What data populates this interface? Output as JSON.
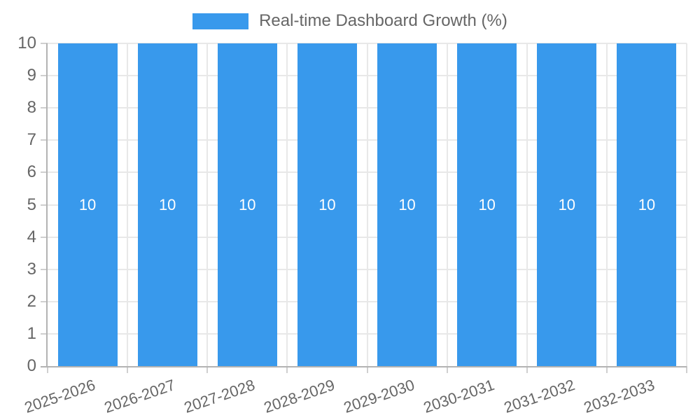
{
  "chart_data": {
    "type": "bar",
    "title": "Real-time Dashboard Growth (%)",
    "categories": [
      "2025-2026",
      "2026-2027",
      "2027-2028",
      "2028-2029",
      "2029-2030",
      "2030-2031",
      "2031-2032",
      "2032-2033"
    ],
    "series": [
      {
        "name": "Real-time Dashboard Growth (%)",
        "values": [
          10,
          10,
          10,
          10,
          10,
          10,
          10,
          10
        ],
        "color": "#3899ec"
      }
    ],
    "yticks": [
      0,
      1,
      2,
      3,
      4,
      5,
      6,
      7,
      8,
      9,
      10
    ],
    "ylim": [
      0,
      10
    ],
    "xlabel": "",
    "ylabel": "",
    "grid": true,
    "legend_position": "top",
    "colors": {
      "bar": "#3899ec",
      "bar_value_label": "#ffffff",
      "axis_text": "#666666",
      "grid_line": "#e8e8e8",
      "axis_line": "#b3b3b3",
      "tick_mark": "#cfcfcf"
    }
  }
}
